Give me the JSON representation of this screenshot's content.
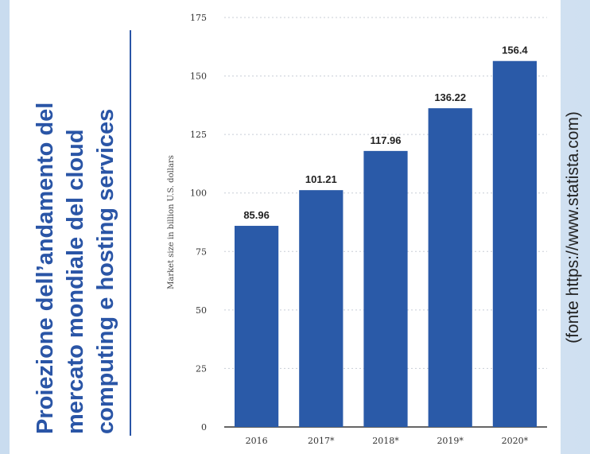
{
  "title_lines": [
    "Proiezione dell’andamento del",
    "mercato mondiale del cloud",
    "computing e hosting services"
  ],
  "source": "(fonte https://www.statista.com)",
  "colors": {
    "bar": "#2a5aa8",
    "title": "#2a55a6",
    "grid": "#c8cdd6"
  },
  "chart_data": {
    "type": "bar",
    "categories": [
      "2016",
      "2017*",
      "2018*",
      "2019*",
      "2020*"
    ],
    "values": [
      85.96,
      101.21,
      117.96,
      136.22,
      156.4
    ],
    "value_labels": [
      "85.96",
      "101.21",
      "117.96",
      "136.22",
      "156.4"
    ],
    "ylabel": "Market size in billion U.S. dollars",
    "ylim": [
      0,
      175
    ],
    "yticks": [
      0,
      25,
      50,
      75,
      100,
      125,
      150,
      175
    ],
    "grid": true
  }
}
